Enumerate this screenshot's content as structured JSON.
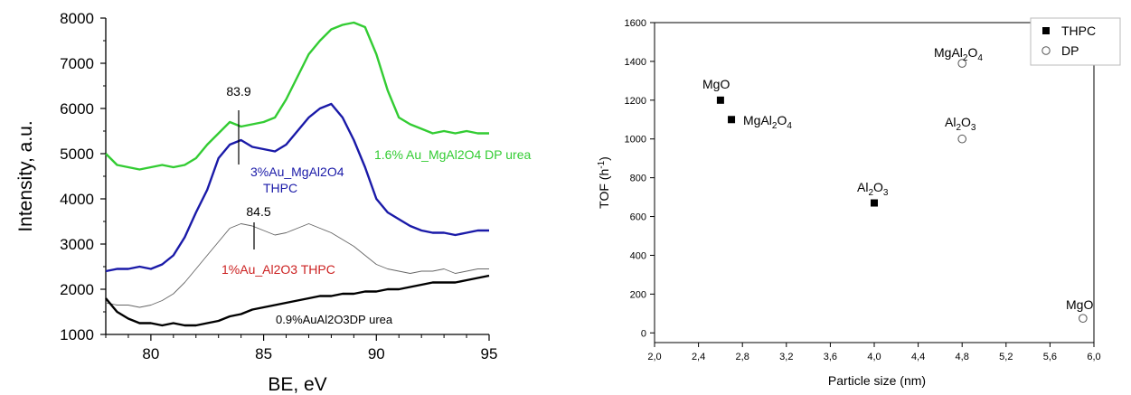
{
  "chart_data": [
    {
      "type": "line",
      "xlabel": "BE, eV",
      "ylabel": "Intensity, a.u.",
      "xlim": [
        78,
        95
      ],
      "ylim": [
        1000,
        8000
      ],
      "x_ticks": [
        "80",
        "85",
        "90",
        "95"
      ],
      "y_ticks": [
        "1000",
        "2000",
        "3000",
        "4000",
        "5000",
        "6000",
        "7000",
        "8000"
      ],
      "grid": false,
      "series": [
        {
          "name": "1.6% Au_MgAl2O4 DP urea",
          "color": "#33cc33",
          "x": [
            78,
            78.5,
            79,
            79.5,
            80,
            80.5,
            81,
            81.5,
            82,
            82.5,
            83,
            83.5,
            84,
            84.5,
            85,
            85.5,
            86,
            86.5,
            87,
            87.5,
            88,
            88.5,
            89,
            89.5,
            90,
            90.5,
            91,
            91.5,
            92,
            92.5,
            93,
            93.5,
            94,
            94.5,
            95
          ],
          "values": [
            5000,
            4750,
            4700,
            4650,
            4700,
            4750,
            4700,
            4750,
            4900,
            5200,
            5450,
            5700,
            5600,
            5650,
            5700,
            5800,
            6200,
            6700,
            7200,
            7500,
            7750,
            7850,
            7900,
            7800,
            7200,
            6400,
            5800,
            5650,
            5550,
            5450,
            5500,
            5450,
            5500,
            5450,
            5450
          ]
        },
        {
          "name": "3%Au_MgAl2O4 THPC",
          "color": "#1a1aa8",
          "x": [
            78,
            78.5,
            79,
            79.5,
            80,
            80.5,
            81,
            81.5,
            82,
            82.5,
            83,
            83.5,
            84,
            84.5,
            85,
            85.5,
            86,
            86.5,
            87,
            87.5,
            88,
            88.5,
            89,
            89.5,
            90,
            90.5,
            91,
            91.5,
            92,
            92.5,
            93,
            93.5,
            94,
            94.5,
            95
          ],
          "values": [
            2400,
            2450,
            2450,
            2500,
            2450,
            2550,
            2750,
            3150,
            3700,
            4200,
            4900,
            5200,
            5300,
            5150,
            5100,
            5050,
            5200,
            5500,
            5800,
            6000,
            6100,
            5800,
            5300,
            4700,
            4000,
            3700,
            3550,
            3400,
            3300,
            3250,
            3250,
            3200,
            3250,
            3300,
            3300
          ]
        },
        {
          "name": "1%Au_Al2O3 THPC",
          "color": "#666666",
          "x": [
            78,
            78.5,
            79,
            79.5,
            80,
            80.5,
            81,
            81.5,
            82,
            82.5,
            83,
            83.5,
            84,
            84.5,
            85,
            85.5,
            86,
            86.5,
            87,
            87.5,
            88,
            88.5,
            89,
            89.5,
            90,
            90.5,
            91,
            91.5,
            92,
            92.5,
            93,
            93.5,
            94,
            94.5,
            95
          ],
          "values": [
            1700,
            1650,
            1650,
            1600,
            1650,
            1750,
            1900,
            2150,
            2450,
            2750,
            3050,
            3350,
            3450,
            3400,
            3300,
            3200,
            3250,
            3350,
            3450,
            3350,
            3250,
            3100,
            2950,
            2750,
            2550,
            2450,
            2400,
            2350,
            2400,
            2400,
            2450,
            2350,
            2400,
            2450,
            2450
          ]
        },
        {
          "name": "0.9%AuAl2O3DP urea",
          "color": "#000000",
          "x": [
            78,
            78.5,
            79,
            79.5,
            80,
            80.5,
            81,
            81.5,
            82,
            82.5,
            83,
            83.5,
            84,
            84.5,
            85,
            85.5,
            86,
            86.5,
            87,
            87.5,
            88,
            88.5,
            89,
            89.5,
            90,
            90.5,
            91,
            91.5,
            92,
            92.5,
            93,
            93.5,
            94,
            94.5,
            95
          ],
          "values": [
            1800,
            1500,
            1350,
            1250,
            1250,
            1200,
            1250,
            1200,
            1200,
            1250,
            1300,
            1400,
            1450,
            1550,
            1600,
            1650,
            1700,
            1750,
            1800,
            1850,
            1850,
            1900,
            1900,
            1950,
            1950,
            2000,
            2000,
            2050,
            2100,
            2150,
            2150,
            2150,
            2200,
            2250,
            2300
          ]
        }
      ],
      "annotations": [
        {
          "text": "83.9",
          "x": 83.9,
          "y": 5500
        },
        {
          "text": "84.5",
          "x": 84.5,
          "y": 3300
        }
      ]
    },
    {
      "type": "scatter",
      "xlabel": "Particle size (nm)",
      "ylabel_main": "TOF (h",
      "ylabel_sup": "-1",
      "ylabel_close": ")",
      "xlim": [
        2.0,
        6.0
      ],
      "ylim": [
        -50,
        1600
      ],
      "x_ticks": [
        "2,0",
        "2,4",
        "2,8",
        "3,2",
        "3,6",
        "4,0",
        "4,4",
        "4,8",
        "5,2",
        "5,6",
        "6,0"
      ],
      "y_ticks": [
        "0",
        "200",
        "400",
        "600",
        "800",
        "1000",
        "1200",
        "1400",
        "1600"
      ],
      "grid": false,
      "legend": "top-right",
      "series": [
        {
          "name": "THPC",
          "marker": "filled-square",
          "points": [
            {
              "x": 2.6,
              "y": 1200,
              "label": "MgO"
            },
            {
              "x": 2.7,
              "y": 1100,
              "label_main": "MgAl",
              "label_sub1": "2",
              "label_mid": "O",
              "label_sub2": "4"
            },
            {
              "x": 4.0,
              "y": 670,
              "label_main": "Al",
              "label_sub1": "2",
              "label_mid": "O",
              "label_sub2": "3"
            }
          ]
        },
        {
          "name": "DP",
          "marker": "open-circle",
          "points": [
            {
              "x": 4.8,
              "y": 1390,
              "label_main": "MgAl",
              "label_sub1": "2",
              "label_mid": "O",
              "label_sub2": "4"
            },
            {
              "x": 4.8,
              "y": 1000,
              "label_main": "Al",
              "label_sub1": "2",
              "label_mid": "O",
              "label_sub2": "3"
            },
            {
              "x": 5.9,
              "y": 75,
              "label": "MgO"
            }
          ]
        }
      ]
    }
  ]
}
